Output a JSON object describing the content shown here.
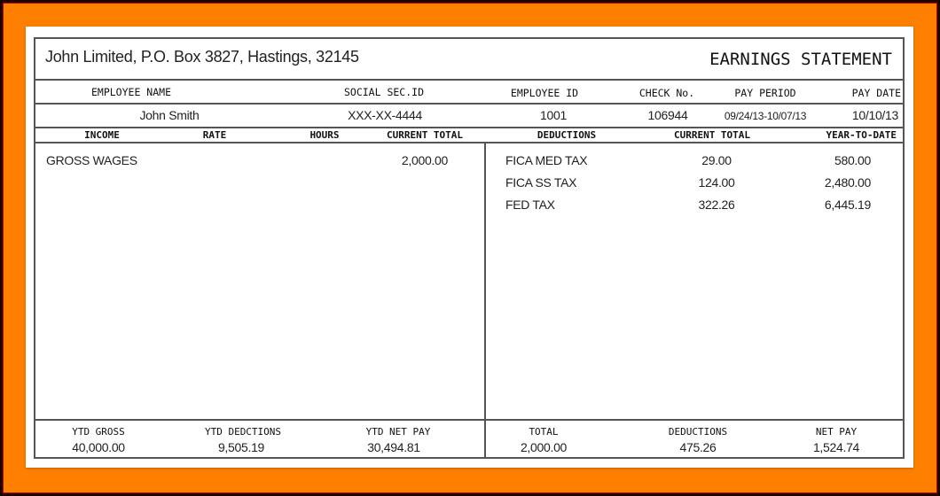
{
  "company": "John Limited, P.O. Box 3827, Hastings, 32145",
  "title": "EARNINGS STATEMENT",
  "info_labels": [
    "EMPLOYEE NAME",
    "SOCIAL SEC.ID",
    "EMPLOYEE ID",
    "CHECK No.",
    "PAY PERIOD",
    "PAY DATE"
  ],
  "info_values": [
    "John Smith",
    "XXX-XX-4444",
    "1001",
    "106944",
    "09/24/13-10/07/13",
    "10/10/13"
  ],
  "income_headers": [
    "INCOME",
    "RATE",
    "HOURS",
    "CURRENT TOTAL"
  ],
  "deduction_headers": [
    "DEDUCTIONS",
    "CURRENT TOTAL",
    "YEAR-TO-DATE"
  ],
  "income": [
    {
      "name": "GROSS WAGES",
      "current": "2,000.00"
    }
  ],
  "deductions": [
    {
      "name": "FICA MED TAX",
      "current": "29.00",
      "ytd": "580.00"
    },
    {
      "name": "FICA SS TAX",
      "current": "124.00",
      "ytd": "2,480.00"
    },
    {
      "name": "FED TAX",
      "current": "322.26",
      "ytd": "6,445.19"
    }
  ],
  "summary": [
    {
      "label": "YTD GROSS",
      "value": "40,000.00"
    },
    {
      "label": "YTD DEDCTIONS",
      "value": "9,505.19"
    },
    {
      "label": "YTD NET PAY",
      "value": "30,494.81"
    },
    {
      "label": "TOTAL",
      "value": "2,000.00"
    },
    {
      "label": "DEDUCTIONS",
      "value": "475.26"
    },
    {
      "label": "NET PAY",
      "value": "1,524.74"
    }
  ],
  "colors": {
    "frame": "#ff7f00",
    "border": "#555555"
  }
}
